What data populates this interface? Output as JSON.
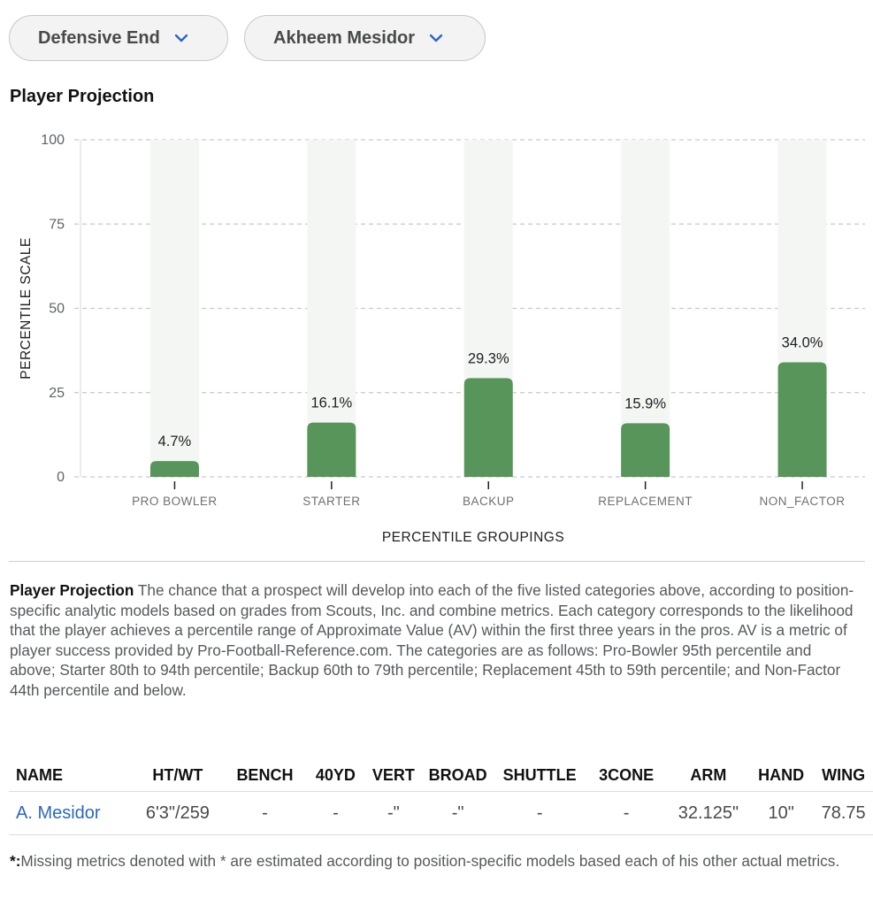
{
  "filters": {
    "position": "Defensive End",
    "player": "Akheem Mesidor"
  },
  "section_title": "Player Projection",
  "chart_data": {
    "type": "bar",
    "title": "",
    "xlabel": "PERCENTILE GROUPINGS",
    "ylabel": "PERCENTILE SCALE",
    "ylim": [
      0,
      100
    ],
    "yticks": [
      "0",
      "25",
      "50",
      "75",
      "100"
    ],
    "grid": true,
    "categories": [
      "PRO BOWLER",
      "STARTER",
      "BACKUP",
      "REPLACEMENT",
      "NON_FACTOR"
    ],
    "values": [
      4.7,
      16.1,
      29.3,
      15.9,
      34.0
    ],
    "data_labels": [
      "4.7%",
      "16.1%",
      "29.3%",
      "15.9%",
      "34.0%"
    ],
    "bar_color": "#57955a",
    "track_color": "#f4f6f4"
  },
  "description": {
    "label": "Player Projection",
    "text": " The chance that a prospect will develop into each of the five listed categories above, according to position-specific analytic models based on grades from Scouts, Inc. and combine metrics. Each category corresponds to the likelihood that the player achieves a percentile range of Approximate Value (AV) within the first three years in the pros. AV is a metric of player success provided by Pro-Football-Reference.com. The categories are as follows: Pro-Bowler 95th percentile and above; Starter 80th to 94th percentile; Backup 60th to 79th percentile; Replacement 45th to 59th percentile; and Non-Factor 44th percentile and below."
  },
  "metrics_table": {
    "headers": [
      "NAME",
      "HT/WT",
      "BENCH",
      "40YD",
      "VERT",
      "BROAD",
      "SHUTTLE",
      "3CONE",
      "ARM",
      "HAND",
      "WING"
    ],
    "rows": [
      [
        "A. Mesidor",
        "6'3\"/259",
        "-",
        "-",
        "-\"",
        "-\"",
        "-",
        "-",
        "32.125\"",
        "10\"",
        "78.75"
      ]
    ]
  },
  "footnote": {
    "label": "*:",
    "text": "Missing metrics denoted with * are estimated according to position-specific models based each of his other actual metrics."
  },
  "colors": {
    "link": "#2b67c1",
    "text_muted": "#55595c"
  }
}
